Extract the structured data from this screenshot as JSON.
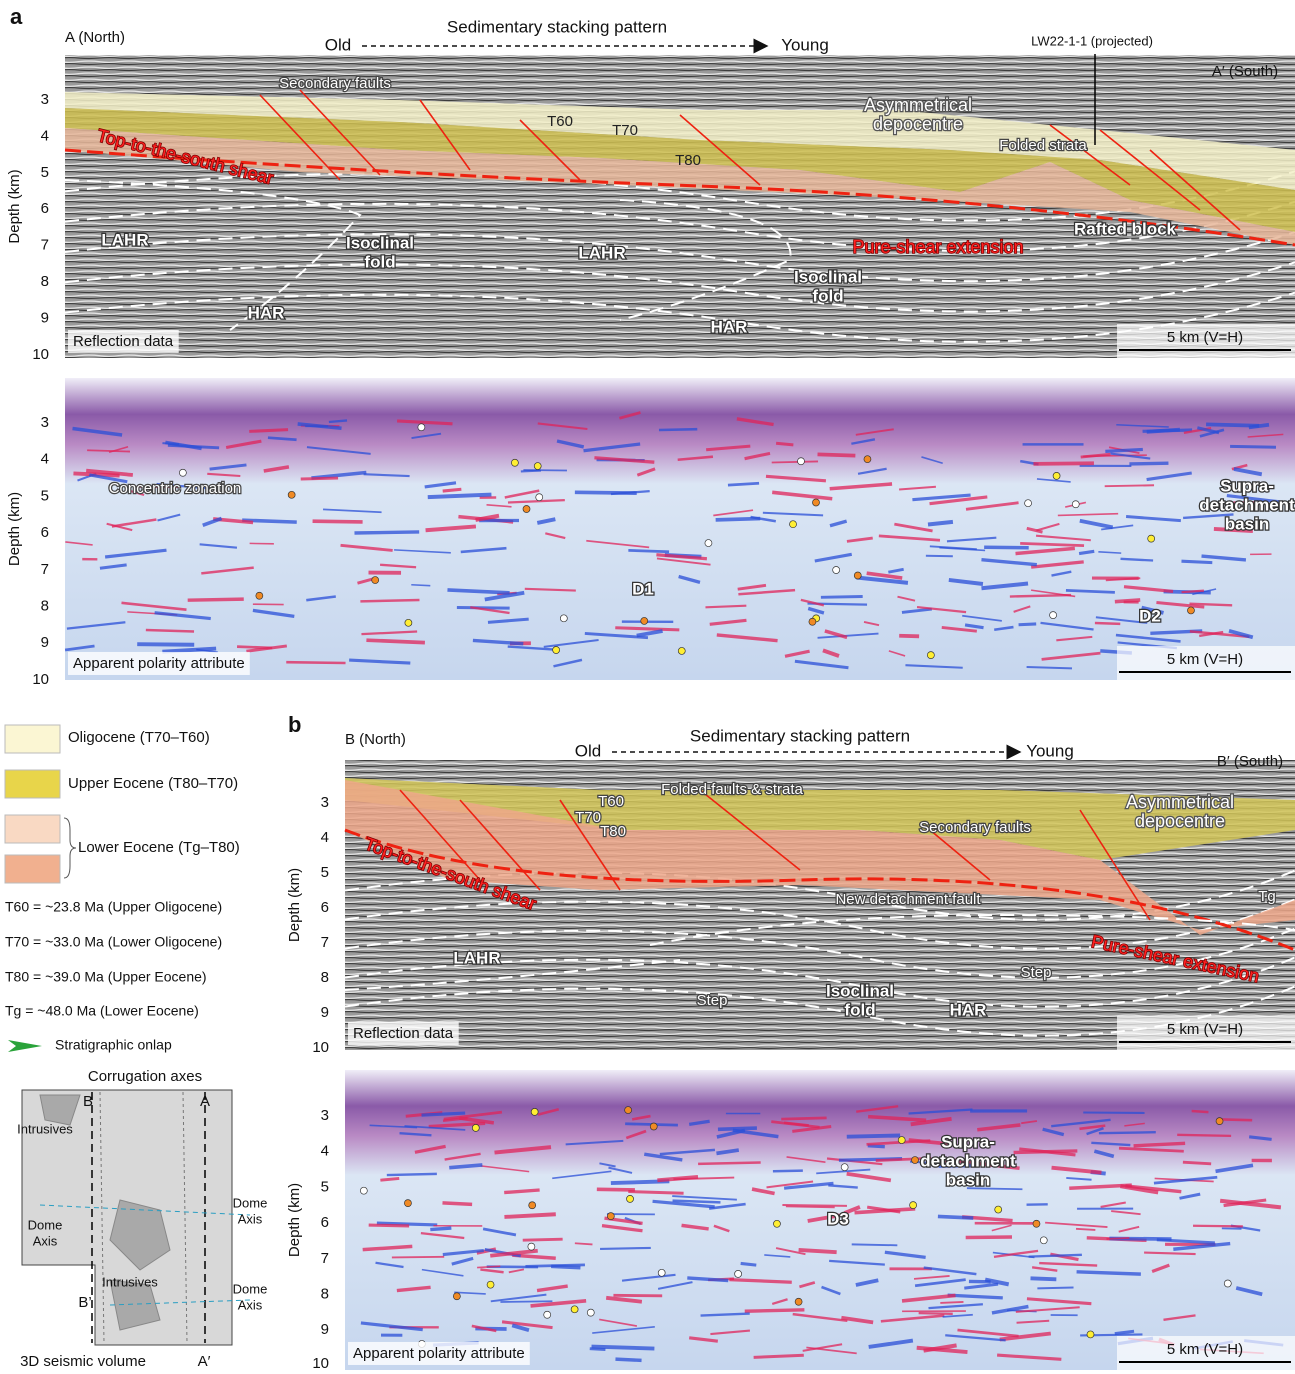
{
  "depth_axis": {
    "label": "Depth (km)",
    "ticks": [
      3,
      4,
      5,
      6,
      7,
      8,
      9,
      10
    ]
  },
  "panel_a": {
    "label": "a",
    "north": "A (North)",
    "south": "A′ (South)",
    "stacking": {
      "title": "Sedimentary stacking pattern",
      "old": "Old",
      "young": "Young"
    },
    "well": "LW22-1-1 (projected)",
    "reflection": {
      "annotations": [
        [
          "Secondary faults"
        ],
        [
          "Asymmetrical",
          "depocentre"
        ],
        [
          "T60"
        ],
        [
          "T70"
        ],
        [
          "T80"
        ],
        [
          "Folded strata"
        ],
        [
          "Top-to-the-south shear"
        ],
        [
          "Pure-shear extension"
        ],
        [
          "Rafted block"
        ],
        [
          "LAHR"
        ],
        [
          "Isoclinal",
          "fold"
        ],
        [
          "LAHR"
        ],
        [
          "Isoclinal",
          "fold"
        ],
        [
          "HAR"
        ],
        [
          "HAR"
        ]
      ],
      "source": "Reflection data",
      "scale": "5 km (V=H)"
    },
    "polarity": {
      "annotations": [
        [
          "Concentric zonation"
        ],
        [
          "D1"
        ],
        [
          "D2"
        ],
        [
          "Supra-",
          "detachment",
          "basin"
        ]
      ],
      "source": "Apparent polarity attribute",
      "scale": "5 km (V=H)"
    }
  },
  "panel_b": {
    "label": "b",
    "north": "B (North)",
    "south": "B′ (South)",
    "stacking": {
      "title": "Sedimentary stacking pattern",
      "old": "Old",
      "young": "Young"
    },
    "reflection": {
      "annotations": [
        [
          "T60"
        ],
        [
          "T70"
        ],
        [
          "T80"
        ],
        [
          "Folded faults & strata"
        ],
        [
          "Asymmetrical",
          "depocentre"
        ],
        [
          "Secondary faults"
        ],
        [
          "Top-to-the-south shear"
        ],
        [
          "New detachment fault"
        ],
        [
          "Tg"
        ],
        [
          "Pure-shear extension"
        ],
        [
          "LAHR"
        ],
        [
          "Step"
        ],
        [
          "Step"
        ],
        [
          "Isoclinal",
          "fold"
        ],
        [
          "HAR"
        ]
      ],
      "source": "Reflection data",
      "scale": "5 km (V=H)"
    },
    "polarity": {
      "annotations": [
        [
          "Supra-",
          "detachment",
          "basin"
        ],
        [
          "D3"
        ]
      ],
      "source": "Apparent polarity attribute",
      "scale": "5 km (V=H)"
    }
  },
  "legend": {
    "units": [
      "Oligocene (T70–T60)",
      "Upper Eocene (T80–T70)",
      "Lower Eocene (Tg–T80)"
    ],
    "ages": [
      "T60 = ~23.8 Ma (Upper Oligocene)",
      "T70 = ~33.0 Ma (Lower Oligocene)",
      "T80 = ~39.0 Ma (Upper Eocene)",
      "Tg = ~48.0 Ma (Lower Eocene)"
    ],
    "onlap": "Stratigraphic onlap"
  },
  "inset": {
    "labels": [
      [
        "Corrugation axes"
      ],
      [
        "B"
      ],
      [
        "A"
      ],
      [
        "Intrusives"
      ],
      [
        "Dome",
        "Axis"
      ],
      [
        "Dome",
        "Axis"
      ],
      [
        "Intrusives"
      ],
      [
        "Dome",
        "Axis"
      ],
      [
        "B’"
      ],
      [
        "3D seismic volume"
      ],
      [
        "A′"
      ]
    ]
  }
}
